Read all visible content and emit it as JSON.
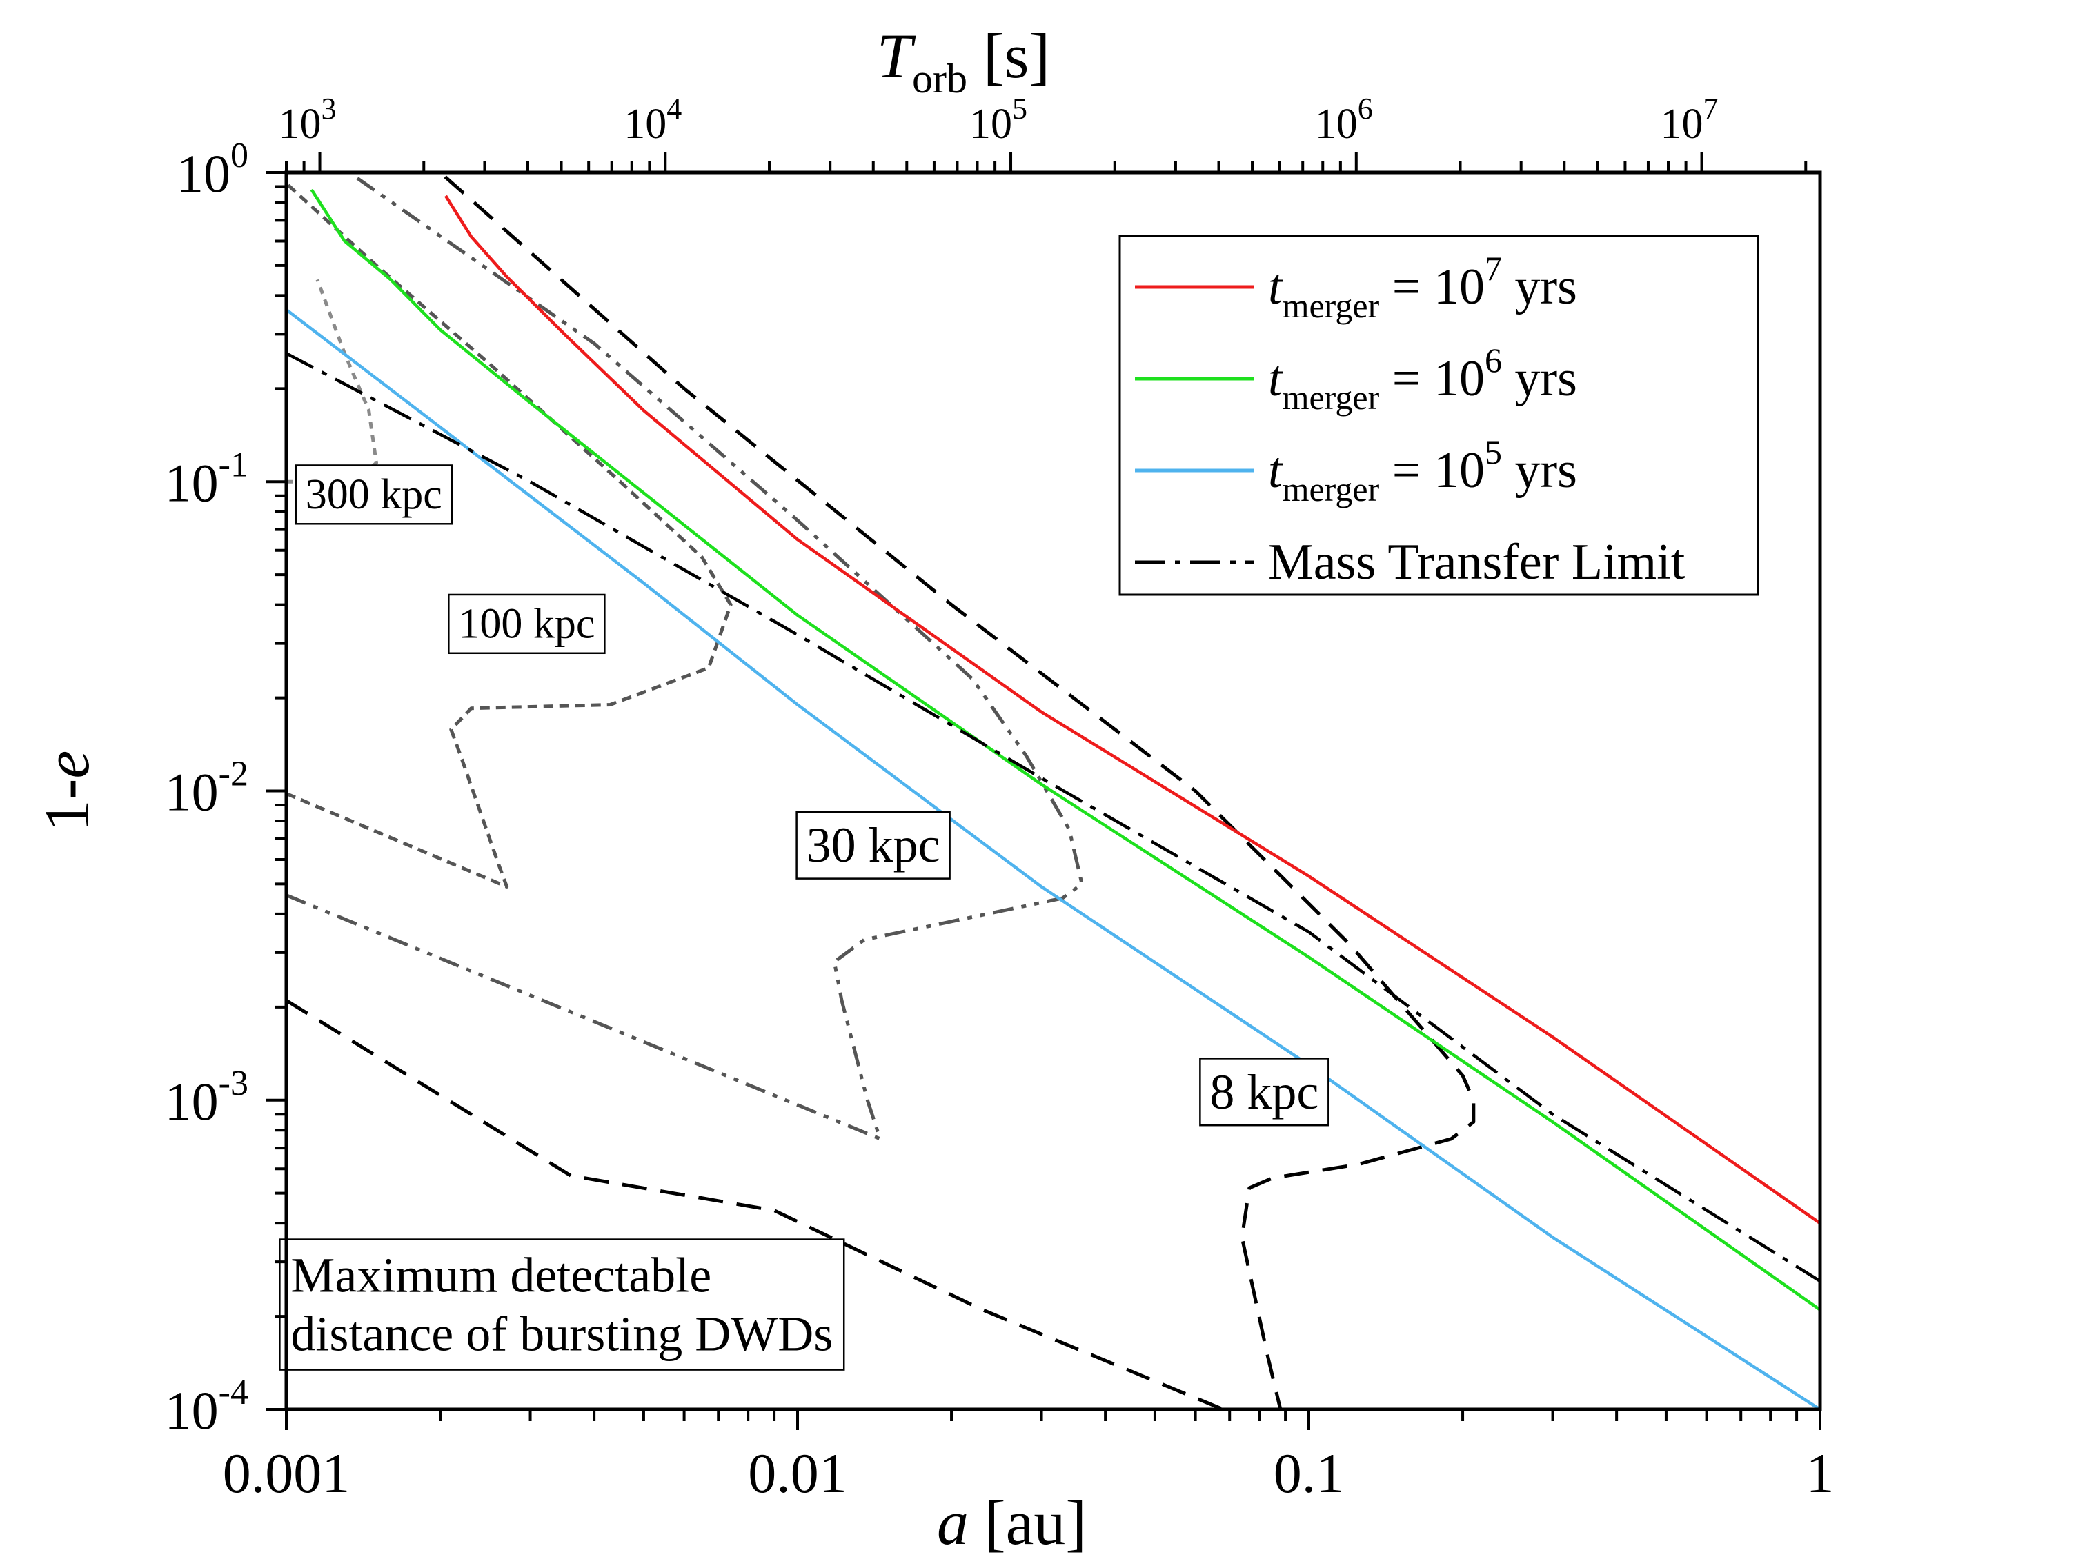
{
  "chart_data": {
    "type": "line",
    "xlabel": {
      "main": "a",
      "unit": " [au]"
    },
    "ylabel": "1-e",
    "top_axis_label": {
      "main": "T",
      "sub": "orb",
      "unit": " [s]"
    },
    "xscale": "log",
    "yscale": "log",
    "xlim": [
      0.001,
      1
    ],
    "ylim": [
      0.0001,
      1
    ],
    "top_axis_lim": [
      800,
      22000000
    ],
    "x_ticks": [
      "0.001",
      "0.01",
      "0.1",
      "1"
    ],
    "y_ticks": [
      {
        "base": "10",
        "exp": "0"
      },
      {
        "base": "10",
        "exp": "-1"
      },
      {
        "base": "10",
        "exp": "-2"
      },
      {
        "base": "10",
        "exp": "-3"
      },
      {
        "base": "10",
        "exp": "-4"
      }
    ],
    "top_ticks": [
      {
        "base": "10",
        "exp": "3"
      },
      {
        "base": "10",
        "exp": "4"
      },
      {
        "base": "10",
        "exp": "5"
      },
      {
        "base": "10",
        "exp": "6"
      },
      {
        "base": "10",
        "exp": "7"
      }
    ],
    "legend": {
      "position": "top-right",
      "entries": [
        {
          "symbol": "t",
          "sub": "merger",
          "rest": " = 10",
          "exp": "7",
          "tail": " yrs",
          "color": "#ee1c1c",
          "style": "solid"
        },
        {
          "symbol": "t",
          "sub": "merger",
          "rest": " = 10",
          "exp": "6",
          "tail": " yrs",
          "color": "#1ee01e",
          "style": "solid"
        },
        {
          "symbol": "t",
          "sub": "merger",
          "rest": " = 10",
          "exp": "5",
          "tail": " yrs",
          "color": "#4fb3ee",
          "style": "solid"
        },
        {
          "text": "Mass Transfer Limit",
          "color": "#000000",
          "style": "dashdot"
        }
      ]
    },
    "series": [
      {
        "legend_index": 0,
        "color": "#ee1c1c",
        "style": "solid",
        "x": [
          0.00205,
          0.0023,
          0.0027,
          0.0035,
          0.005,
          0.01,
          0.03,
          0.1,
          0.3,
          1.0
        ],
        "y": [
          0.84,
          0.62,
          0.46,
          0.3,
          0.17,
          0.065,
          0.018,
          0.0053,
          0.0016,
          0.0004
        ]
      },
      {
        "legend_index": 1,
        "color": "#1ee01e",
        "style": "solid",
        "x": [
          0.00112,
          0.0013,
          0.0016,
          0.002,
          0.003,
          0.005,
          0.01,
          0.03,
          0.1,
          0.3,
          1.0
        ],
        "y": [
          0.88,
          0.6,
          0.45,
          0.31,
          0.18,
          0.092,
          0.037,
          0.0105,
          0.0029,
          0.00085,
          0.00021
        ]
      },
      {
        "legend_index": 2,
        "color": "#4fb3ee",
        "style": "solid",
        "x": [
          0.001,
          0.002,
          0.005,
          0.01,
          0.03,
          0.1,
          0.3,
          1.0
        ],
        "y": [
          0.36,
          0.15,
          0.047,
          0.019,
          0.0049,
          0.0013,
          0.00036,
          0.0001
        ]
      },
      {
        "legend_index": 3,
        "color": "#000000",
        "style": "dashdot",
        "x": [
          0.001,
          0.003,
          0.01,
          0.03,
          0.1,
          0.3,
          1.0
        ],
        "y": [
          0.26,
          0.1,
          0.032,
          0.011,
          0.0035,
          0.0009,
          0.00026
        ]
      }
    ],
    "distance_contours": [
      {
        "label": "300 kpc",
        "color": "#8a8a8a",
        "style": "dotted",
        "x": [
          0.001,
          0.00135,
          0.0015,
          0.00145,
          0.0013,
          0.00115
        ],
        "y": [
          0.1,
          0.1,
          0.115,
          0.17,
          0.26,
          0.45
        ]
      },
      {
        "label": "100 kpc",
        "color": "#555555",
        "style": "densedash",
        "x": [
          0.001,
          0.0027,
          0.0026,
          0.0022,
          0.0021,
          0.0023,
          0.0043,
          0.0067,
          0.0074,
          0.0065,
          0.0045,
          0.0025,
          0.0015,
          0.00098
        ],
        "y": [
          0.0098,
          0.0049,
          0.0058,
          0.0128,
          0.0158,
          0.0185,
          0.019,
          0.025,
          0.04,
          0.057,
          0.1,
          0.24,
          0.5,
          0.95
        ]
      },
      {
        "label": "30 kpc",
        "color": "#555555",
        "style": "dashdotdot",
        "x": [
          0.001,
          0.0145,
          0.0137,
          0.0122,
          0.0118,
          0.0135,
          0.033,
          0.036,
          0.034,
          0.028,
          0.022,
          0.01,
          0.004,
          0.00135
        ],
        "y": [
          0.0046,
          0.00075,
          0.001,
          0.0021,
          0.0028,
          0.0033,
          0.0045,
          0.005,
          0.0075,
          0.013,
          0.023,
          0.075,
          0.28,
          0.98
        ]
      },
      {
        "label": "8 kpc",
        "color": "#000000",
        "style": "dashed",
        "x": [
          0.001,
          0.0036,
          0.009,
          0.023,
          0.068,
          0.088,
          0.083,
          0.074,
          0.0765,
          0.085,
          0.125,
          0.19,
          0.21,
          0.21,
          0.2,
          0.12,
          0.06,
          0.02,
          0.006,
          0.002
        ],
        "y": [
          0.0021,
          0.00057,
          0.00044,
          0.00021,
          0.0001,
          0.0001,
          0.00015,
          0.00036,
          0.00052,
          0.00056,
          0.00062,
          0.00075,
          0.00085,
          0.001,
          0.0012,
          0.0032,
          0.01,
          0.04,
          0.2,
          1.0
        ]
      }
    ],
    "annotations": [
      {
        "text": "300 kpc",
        "x": 0.00109,
        "y": 0.082,
        "size": "small"
      },
      {
        "text": "100 kpc",
        "x": 0.00217,
        "y": 0.0313,
        "size": "small"
      },
      {
        "text": "30 kpc",
        "x": 0.0104,
        "y": 0.0059,
        "size": "large"
      },
      {
        "text": "8 kpc",
        "x": 0.064,
        "y": 0.00094,
        "size": "large"
      }
    ],
    "note_box": {
      "lines": [
        "Maximum detectable",
        "distance of bursting DWDs"
      ],
      "anchor_x": 0.00102,
      "anchor_y": 0.00024
    },
    "grid": false
  }
}
